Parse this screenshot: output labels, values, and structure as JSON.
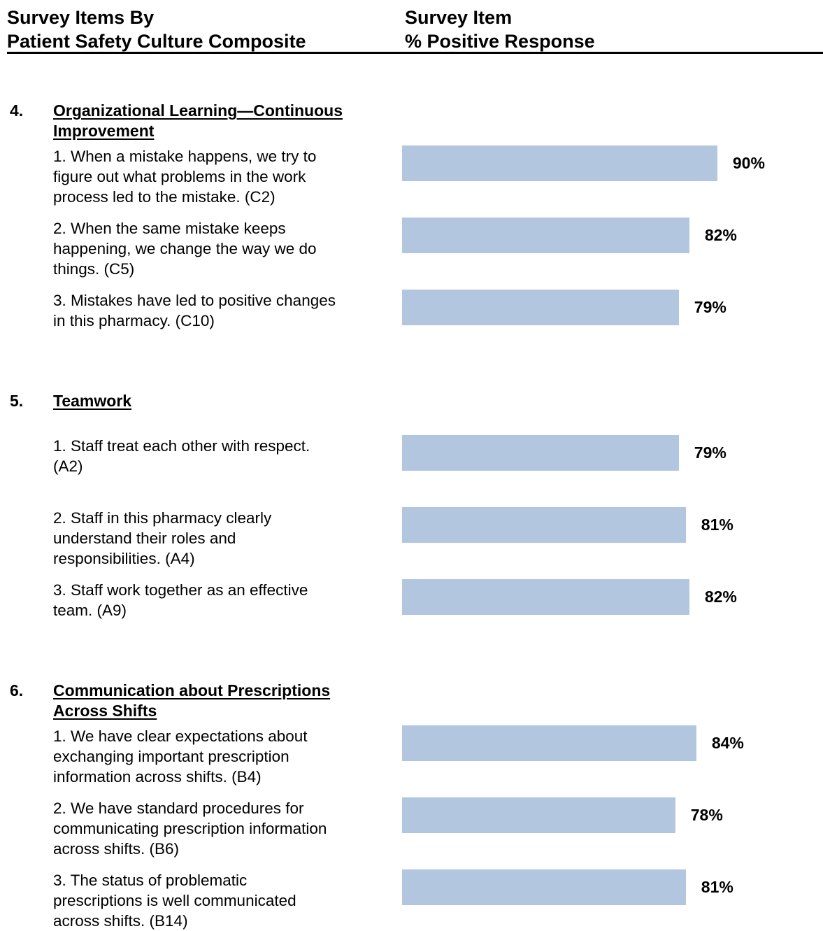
{
  "chart_data": {
    "type": "bar",
    "orientation": "horizontal",
    "color": "#b3c6df",
    "header_left": [
      "Survey Items By",
      "Patient Safety Culture Composite"
    ],
    "header_right": [
      "Survey Item",
      "% Positive Response"
    ],
    "groups": [
      {
        "number": "4.",
        "title": [
          "Organizational Learning—Continuous",
          "Improvement"
        ],
        "items": [
          {
            "label": [
              "1. When a mistake happens, we try to",
              "figure out what problems in the work",
              "process led to the mistake. (C2)"
            ],
            "value": 90,
            "value_label": "90%"
          },
          {
            "label": [
              "2. When the same mistake keeps",
              "happening, we change the way we do",
              "things. (C5)"
            ],
            "value": 82,
            "value_label": "82%"
          },
          {
            "label": [
              "3. Mistakes have led to positive changes",
              "in this pharmacy. (C10)"
            ],
            "value": 79,
            "value_label": "79%"
          }
        ]
      },
      {
        "number": "5.",
        "title": [
          "Teamwork"
        ],
        "items": [
          {
            "label": [
              "1. Staff treat each other with respect.",
              "(A2)"
            ],
            "value": 79,
            "value_label": "79%"
          },
          {
            "label": [
              "2. Staff in this pharmacy clearly",
              "understand their roles and",
              "responsibilities. (A4)"
            ],
            "value": 81,
            "value_label": "81%"
          },
          {
            "label": [
              "3. Staff work together as an effective",
              "team.  (A9)"
            ],
            "value": 82,
            "value_label": "82%"
          }
        ]
      },
      {
        "number": "6.",
        "title": [
          "Communication about Prescriptions",
          "Across Shifts"
        ],
        "items": [
          {
            "label": [
              "1. We have clear expectations about",
              "exchanging important prescription",
              "information across shifts. (B4)"
            ],
            "value": 84,
            "value_label": "84%"
          },
          {
            "label": [
              "2. We have standard procedures for",
              "communicating prescription information",
              "across shifts. (B6)"
            ],
            "value": 78,
            "value_label": "78%"
          },
          {
            "label": [
              "3. The status of problematic",
              "prescriptions is well communicated",
              "across shifts. (B14)"
            ],
            "value": 81,
            "value_label": "81%"
          }
        ]
      }
    ]
  }
}
